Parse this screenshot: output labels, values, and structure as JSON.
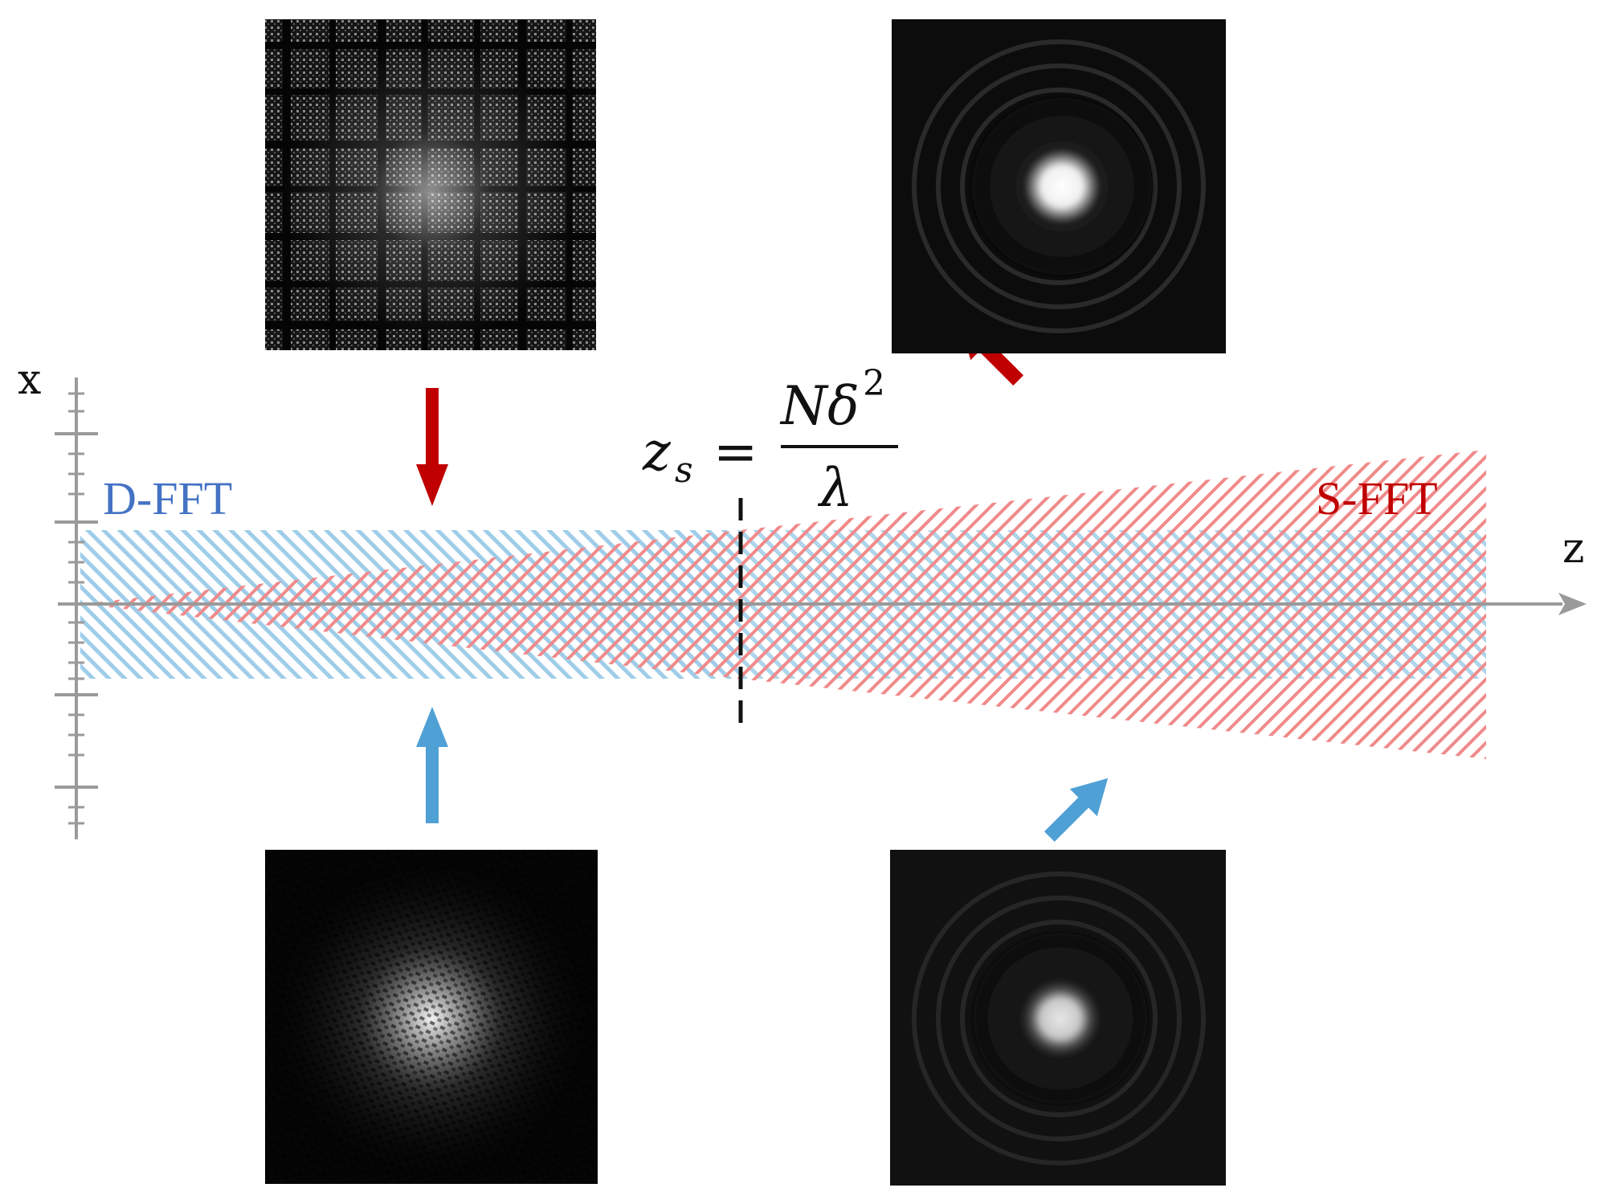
{
  "axes": {
    "x_label": "x",
    "z_label": "z"
  },
  "regions": {
    "dfft": {
      "label": "D-FFT",
      "color": "#4472c4"
    },
    "sfft": {
      "label": "S-FFT",
      "color": "#c00000"
    }
  },
  "equation": {
    "lhs_var": "z",
    "lhs_sub": "s",
    "equals": "=",
    "numerator_N": "N",
    "numerator_delta": "δ",
    "numerator_exp": "2",
    "denominator": "λ"
  },
  "colors": {
    "blue_hatch": "#9fcde9",
    "red_hatch": "#f08a8a",
    "red_arrow": "#c00000",
    "blue_arrow": "#4fa0d5",
    "axis_gray": "#9a9a9a"
  },
  "panels": [
    {
      "name": "grid-pattern-image",
      "desc_icon": "dfft-near-field-image"
    },
    {
      "name": "blur-spot-image-top",
      "desc_icon": "sfft-far-field-image"
    },
    {
      "name": "speckle-spot-image",
      "desc_icon": "dfft-far-field-image"
    },
    {
      "name": "blur-spot-image-bottom",
      "desc_icon": "sfft-reference-image"
    }
  ]
}
